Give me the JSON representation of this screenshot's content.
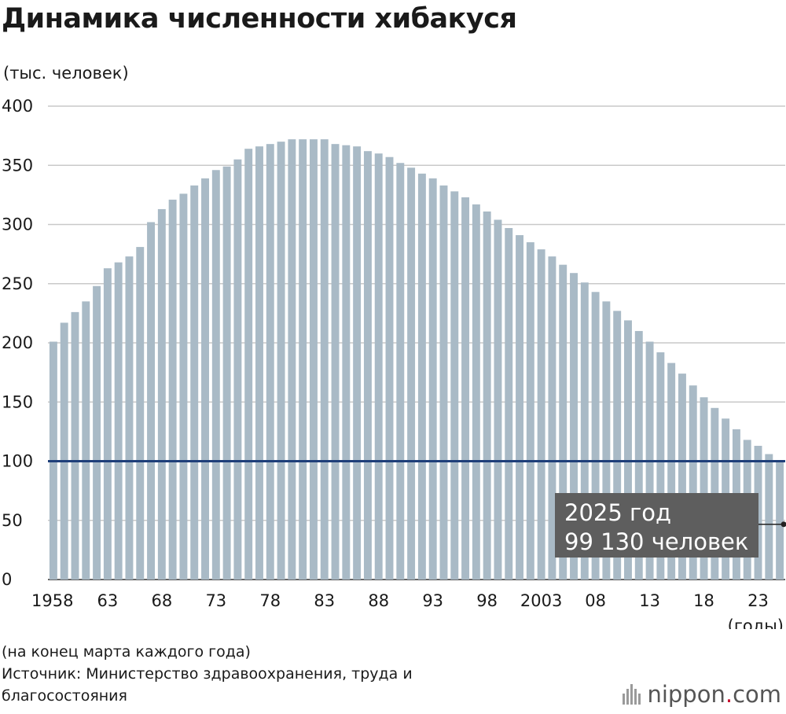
{
  "title": "Динамика численности хибакуся",
  "unit_label": "(тыс. человек)",
  "notes": {
    "line1": "(на конец марта каждого года)",
    "line2": "Источник: Министерство здравоохранения, труда и",
    "line3": "благосостояния"
  },
  "logo": {
    "name": "nippon",
    "dot": ".",
    "suffix": "com"
  },
  "colors": {
    "bar": "#a9bac6",
    "reference_line": "#1f3f7a",
    "grid": "#c9c9c9",
    "callout_bg": "#5e5e5e",
    "callout_text": "#ffffff"
  },
  "chart_data": {
    "type": "bar",
    "title": "Динамика численности хибакуся",
    "ylabel": "(тыс. человек)",
    "xlabel": "(годы)",
    "ylim": [
      0,
      400
    ],
    "yticks": [
      0,
      50,
      100,
      150,
      200,
      250,
      300,
      350,
      400
    ],
    "grid": true,
    "x_tick_labels": [
      "1958",
      "63",
      "68",
      "73",
      "78",
      "83",
      "88",
      "93",
      "98",
      "2003",
      "08",
      "13",
      "18",
      "23"
    ],
    "reference_line": {
      "value": 100
    },
    "annotation": {
      "year": 2025,
      "line1": "2025 год",
      "line2": "99 130 человек"
    },
    "categories": [
      1958,
      1959,
      1960,
      1961,
      1962,
      1963,
      1964,
      1965,
      1966,
      1967,
      1968,
      1969,
      1970,
      1971,
      1972,
      1973,
      1974,
      1975,
      1976,
      1977,
      1978,
      1979,
      1980,
      1981,
      1982,
      1983,
      1984,
      1985,
      1986,
      1987,
      1988,
      1989,
      1990,
      1991,
      1992,
      1993,
      1994,
      1995,
      1996,
      1997,
      1998,
      1999,
      2000,
      2001,
      2002,
      2003,
      2004,
      2005,
      2006,
      2007,
      2008,
      2009,
      2010,
      2011,
      2012,
      2013,
      2014,
      2015,
      2016,
      2017,
      2018,
      2019,
      2020,
      2021,
      2022,
      2023,
      2024,
      2025
    ],
    "values": [
      201,
      217,
      226,
      235,
      248,
      263,
      268,
      273,
      281,
      302,
      313,
      321,
      326,
      333,
      339,
      346,
      349,
      355,
      364,
      366,
      368,
      370,
      372,
      372,
      372,
      372,
      368,
      367,
      366,
      362,
      360,
      357,
      352,
      348,
      343,
      339,
      333,
      328,
      323,
      317,
      311,
      304,
      297,
      291,
      285,
      279,
      273,
      266,
      259,
      251,
      243,
      235,
      227,
      219,
      210,
      201,
      192,
      183,
      174,
      164,
      154,
      145,
      136,
      127,
      118,
      113,
      106,
      99.13
    ]
  }
}
